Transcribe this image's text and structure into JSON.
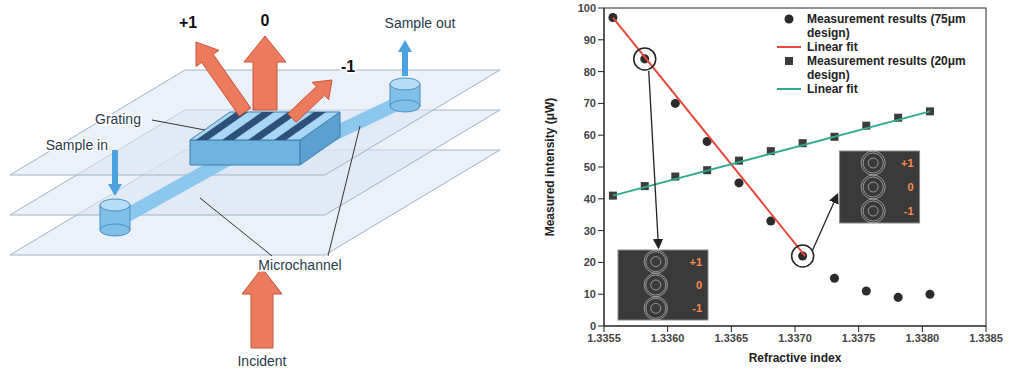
{
  "diagram": {
    "orders": {
      "plus": "+1",
      "zero": "0",
      "minus": "-1"
    },
    "labels": {
      "sample_in": "Sample in",
      "sample_out": "Sample out",
      "grating": "Grating",
      "microchannel": "Microchannel",
      "incident": "Incident"
    }
  },
  "chart_data": {
    "type": "scatter",
    "x_label": "Refractive index",
    "y_label": "Measured intensity (μW)",
    "xlim": [
      1.3355,
      1.3385
    ],
    "xticks": [
      1.3355,
      {
        "value": 1.336,
        "label": "1.3360"
      },
      1.3365,
      {
        "value": 1.337,
        "label": "1.3370"
      },
      1.3375,
      {
        "value": 1.338,
        "label": "1.3380"
      },
      1.3385
    ],
    "ylim": [
      0,
      100
    ],
    "yticks": [
      0,
      10,
      20,
      30,
      40,
      50,
      60,
      70,
      80,
      90,
      100
    ],
    "legend": "top right",
    "series": [
      {
        "name": "Measurement results (75μm design)",
        "type": "scatter",
        "marker": "circle",
        "color": "#2b2b2b",
        "x": [
          1.33557,
          1.33582,
          1.33606,
          1.33631,
          1.33656,
          1.33681,
          1.33706,
          1.33731,
          1.33756,
          1.33781,
          1.33806
        ],
        "values": [
          97,
          84,
          70,
          58,
          45,
          33,
          22,
          15,
          11,
          9,
          10
        ]
      },
      {
        "name": "Linear fit",
        "type": "line",
        "color": "#e8483a",
        "x": [
          1.33557,
          1.33708
        ],
        "values": [
          97,
          22
        ]
      },
      {
        "name": "Measurement results (20μm design)",
        "type": "scatter",
        "marker": "square",
        "color": "#3c3c3c",
        "x": [
          1.33557,
          1.33582,
          1.33606,
          1.33631,
          1.33656,
          1.33681,
          1.33706,
          1.33731,
          1.33756,
          1.33781,
          1.33806
        ],
        "values": [
          41,
          44,
          47,
          49,
          52,
          55,
          57.5,
          59.5,
          63,
          65.5,
          67.5
        ]
      },
      {
        "name": "Linear fit",
        "type": "line",
        "color": "#2eaa8c",
        "x": [
          1.33557,
          1.33806
        ],
        "values": [
          41,
          67.5
        ]
      }
    ],
    "annotations": [
      {
        "x": 1.33582,
        "y": 84,
        "labels": [
          "+1",
          "0",
          "-1"
        ]
      },
      {
        "x": 1.33706,
        "y": 22,
        "labels": [
          "+1",
          "0",
          "-1"
        ]
      }
    ]
  }
}
